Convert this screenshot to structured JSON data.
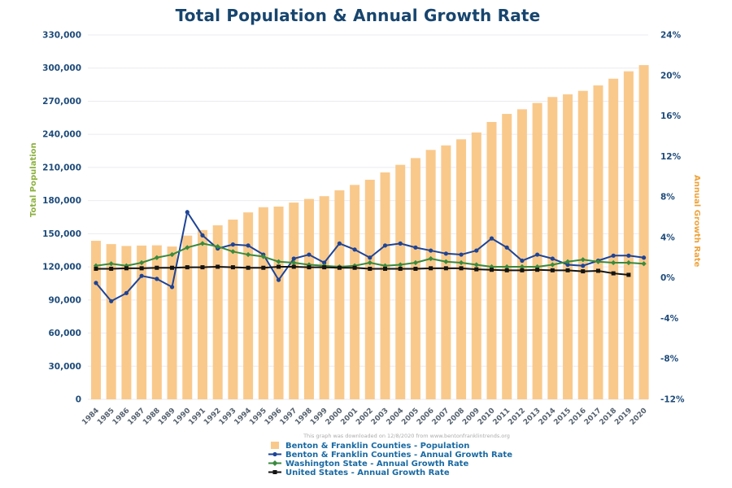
{
  "chart_data": {
    "type": "bar",
    "title": "Total Population & Annual Growth Rate",
    "note": "This graph was downloaded on 12/8/2020 from www.bentonfranklintrends.org",
    "x": [
      "1984",
      "1985",
      "1986",
      "1987",
      "1988",
      "1989",
      "1990",
      "1991",
      "1992",
      "1993",
      "1994",
      "1995",
      "1996",
      "1997",
      "1998",
      "1999",
      "2000",
      "2001",
      "2002",
      "2003",
      "2004",
      "2005",
      "2006",
      "2007",
      "2008",
      "2009",
      "2010",
      "2011",
      "2012",
      "2013",
      "2014",
      "2015",
      "2016",
      "2017",
      "2018",
      "2019",
      "2020"
    ],
    "left_axis": {
      "label": "Total Population",
      "min": 0,
      "max": 330000,
      "step": 30000,
      "ticks": [
        0,
        30000,
        60000,
        90000,
        120000,
        150000,
        180000,
        210000,
        240000,
        270000,
        300000,
        330000
      ],
      "tick_labels": [
        "0",
        "30,000",
        "60,000",
        "90,000",
        "120,000",
        "150,000",
        "180,000",
        "210,000",
        "240,000",
        "270,000",
        "300,000",
        "330,000"
      ]
    },
    "right_axis": {
      "label": "Annual Growth Rate",
      "min": -12,
      "max": 24,
      "step": 4,
      "ticks": [
        -12,
        -8,
        -4,
        0,
        4,
        8,
        12,
        16,
        20,
        24
      ],
      "tick_labels": [
        "-12%",
        "-8%",
        "-4%",
        "0%",
        "4%",
        "8%",
        "12%",
        "16%",
        "20%",
        "24%"
      ]
    },
    "grid": "horizontal",
    "legend_position": "bottom",
    "series": [
      {
        "name": "Benton & Franklin Counties - Population",
        "type": "bar",
        "axis": "left",
        "color": "#F9C98C",
        "marker": "none",
        "values": [
          143600,
          140600,
          138900,
          139300,
          139500,
          138400,
          148300,
          153300,
          157600,
          162800,
          169300,
          174000,
          174600,
          178200,
          181500,
          184000,
          189300,
          194200,
          198900,
          205500,
          212400,
          218500,
          225900,
          230000,
          235500,
          241700,
          251200,
          258500,
          262700,
          268400,
          273800,
          276200,
          279400,
          284300,
          290400,
          297100,
          302700
        ]
      },
      {
        "name": "Benton & Franklin Counties - Annual Growth Rate",
        "type": "line",
        "axis": "right",
        "color": "#1E4496",
        "marker": "circle",
        "values": [
          -0.5,
          -2.3,
          -1.5,
          0.2,
          -0.1,
          -0.9,
          6.5,
          4.2,
          2.9,
          3.3,
          3.2,
          2.3,
          -0.2,
          1.9,
          2.3,
          1.5,
          3.4,
          2.8,
          2.0,
          3.2,
          3.4,
          3.0,
          2.7,
          2.4,
          2.3,
          2.7,
          3.9,
          3.0,
          1.7,
          2.3,
          1.9,
          1.3,
          1.2,
          1.7,
          2.2,
          2.2,
          2.0
        ]
      },
      {
        "name": "Washington State - Annual Growth Rate",
        "type": "line",
        "axis": "right",
        "color": "#3A8A3E",
        "marker": "diamond",
        "values": [
          1.2,
          1.4,
          1.2,
          1.5,
          2.0,
          2.3,
          3.0,
          3.4,
          3.1,
          2.6,
          2.3,
          2.1,
          1.6,
          1.5,
          1.3,
          1.2,
          1.1,
          1.2,
          1.5,
          1.2,
          1.3,
          1.5,
          1.9,
          1.6,
          1.5,
          1.3,
          1.1,
          1.1,
          1.1,
          1.1,
          1.3,
          1.6,
          1.8,
          1.6,
          1.5,
          1.5,
          1.4
        ]
      },
      {
        "name": "United States - Annual Growth Rate",
        "type": "line",
        "axis": "right",
        "color": "#141414",
        "marker": "square",
        "values": [
          0.9,
          0.9,
          0.95,
          0.95,
          1.0,
          1.0,
          1.05,
          1.05,
          1.1,
          1.05,
          1.0,
          1.0,
          1.1,
          1.1,
          1.05,
          1.05,
          1.0,
          1.0,
          0.9,
          0.9,
          0.9,
          0.9,
          0.95,
          0.95,
          0.95,
          0.85,
          0.8,
          0.75,
          0.75,
          0.8,
          0.75,
          0.75,
          0.65,
          0.7,
          0.45,
          0.3,
          null
        ]
      }
    ],
    "colors": {
      "title": "#17456E",
      "axis_tick_text": "#1E4B7A",
      "year_tick_text": "#55616E",
      "left_axis_title": "#8CB03E",
      "right_axis_title": "#EDA33C",
      "gridline": "#EBEBF0",
      "legend_text": "#1A6AA3",
      "note_text": "#ABABAB",
      "background": "#FFFFFF"
    }
  }
}
